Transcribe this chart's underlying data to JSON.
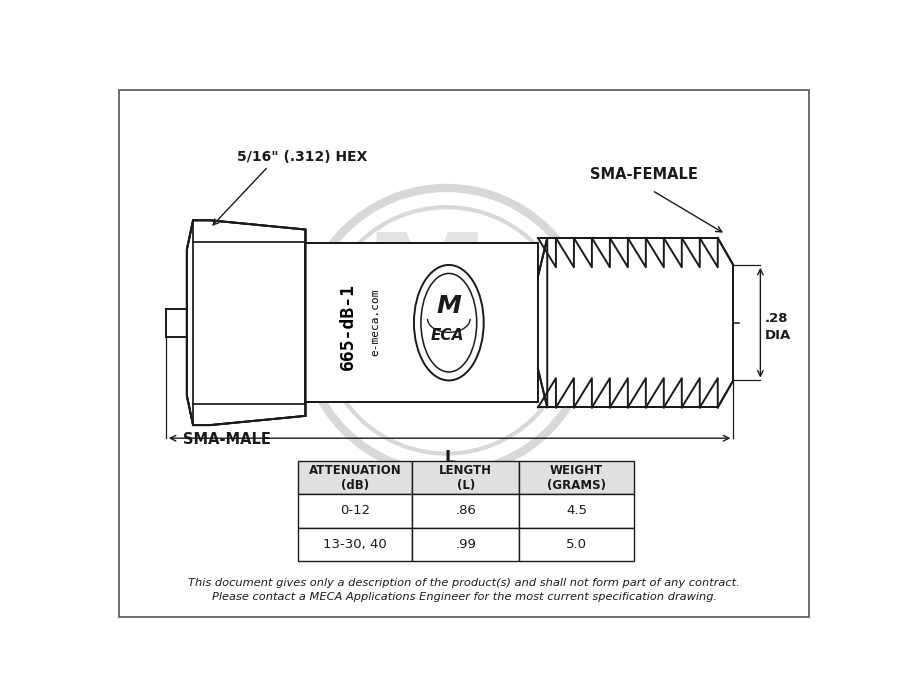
{
  "background_color": "#ffffff",
  "line_color": "#1a1a1a",
  "watermark_color": "#d8d8d8",
  "label_hex": "5/16\" (.312) HEX",
  "label_sma_male": "SMA-MALE",
  "label_sma_female": "SMA-FEMALE",
  "label_dia": ".28",
  "label_dia2": "DIA",
  "label_L": "L",
  "label_product": "665-dB-1",
  "label_url": "e-meca.com",
  "disclaimer_line1": "This document gives only a description of the product(s) and shall not form part of any contract.",
  "disclaimer_line2": "Please contact a MECA Applications Engineer for the most current specification drawing.",
  "table_headers": [
    "ATTENUATION\n(dB)",
    "LENGTH\n(L)",
    "WEIGHT\n(GRAMS)"
  ],
  "table_row1": [
    "0-12",
    ".86",
    "4.5"
  ],
  "table_row2": [
    "13-30, 40",
    ".99",
    "5.0"
  ],
  "table_bg_header": "#e0e0e0",
  "table_bg_row": "#ffffff"
}
